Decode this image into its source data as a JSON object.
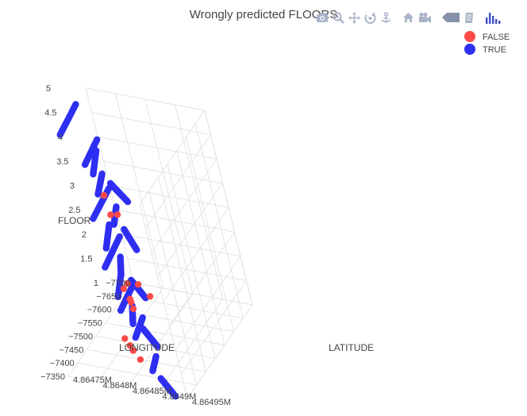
{
  "colors": {
    "false": "#ff4a4a",
    "true": "#2f2ff2",
    "grid": "#e4e4e4",
    "text": "#444444",
    "modebar": "#aab4c8",
    "plotly_logo": "#3f4fc9"
  },
  "modebar": {
    "buttons": [
      {
        "name": "download-plot-icon"
      },
      {
        "name": "zoom-icon"
      },
      {
        "name": "pan-icon"
      },
      {
        "name": "orbit-rotation-icon"
      },
      {
        "name": "turntable-rotation-icon"
      },
      {
        "name": "reset-camera-icon"
      },
      {
        "name": "save-camera-icon"
      },
      {
        "name": "toggle-hover-icon"
      },
      {
        "name": "edit-chart-icon"
      },
      {
        "name": "plotly-logo-icon"
      }
    ]
  },
  "chart_data": {
    "type": "scatter3d",
    "title": "Wrongly predicted FLOORS",
    "axes": {
      "x": {
        "title": "LONGITUDE",
        "ticks": [
          "−7700",
          "−7650",
          "−7600",
          "−7550",
          "−7500",
          "−7450",
          "−7400",
          "−7350"
        ],
        "range": [
          -7700,
          -7350
        ]
      },
      "y": {
        "title": "LATITUDE",
        "ticks": [
          "4.86475M",
          "4.8648M",
          "4.86485M",
          "4.8649M",
          "4.86495M"
        ],
        "range": [
          4864750,
          4864950
        ]
      },
      "z": {
        "title": "FLOOR",
        "ticks": [
          "1",
          "1.5",
          "2",
          "2.5",
          "3",
          "3.5",
          "4",
          "4.5",
          "5"
        ],
        "range": [
          1,
          5
        ]
      }
    },
    "legend": {
      "placement": "top-right",
      "items": [
        "FALSE",
        "TRUE"
      ]
    },
    "series": [
      {
        "name": "TRUE",
        "lines": [
          {
            "floor": 0,
            "lon": [
              -7690,
              -7600
            ],
            "lat": [
              4864752,
              4864760
            ]
          },
          {
            "floor": 0,
            "lon": [
              -7590,
              -7520
            ],
            "lat": [
              4864800,
              4864810
            ]
          },
          {
            "floor": 0,
            "lon": [
              -7470,
              -7420
            ],
            "lat": [
              4864860,
              4864870
            ]
          },
          {
            "floor": 0,
            "lon": [
              -7400,
              -7350
            ],
            "lat": [
              4864890,
              4864930
            ]
          },
          {
            "floor": 1,
            "lon": [
              -7690,
              -7580
            ],
            "lat": [
              4864750,
              4864760
            ]
          },
          {
            "floor": 1,
            "lon": [
              -7570,
              -7490
            ],
            "lat": [
              4864790,
              4864810
            ]
          },
          {
            "floor": 1,
            "lon": [
              -7470,
              -7410
            ],
            "lat": [
              4864840,
              4864860
            ]
          },
          {
            "floor": 1,
            "lon": [
              -7400,
              -7350
            ],
            "lat": [
              4864880,
              4864920
            ]
          },
          {
            "floor": 2,
            "lon": [
              -7690,
              -7580
            ],
            "lat": [
              4864752,
              4864760
            ]
          },
          {
            "floor": 2,
            "lon": [
              -7570,
              -7490
            ],
            "lat": [
              4864790,
              4864810
            ]
          },
          {
            "floor": 2,
            "lon": [
              -7470,
              -7410
            ],
            "lat": [
              4864840,
              4864860
            ]
          },
          {
            "floor": 2,
            "lon": [
              -7400,
              -7350
            ],
            "lat": [
              4864880,
              4864920
            ]
          },
          {
            "floor": 3,
            "lon": [
              -7690,
              -7600
            ],
            "lat": [
              4864752,
              4864760
            ]
          },
          {
            "floor": 3,
            "lon": [
              -7580,
              -7510
            ],
            "lat": [
              4864795,
              4864810
            ]
          },
          {
            "floor": 3,
            "lon": [
              -7480,
              -7420
            ],
            "lat": [
              4864850,
              4864865
            ]
          },
          {
            "floor": 3,
            "lon": [
              -7410,
              -7350
            ],
            "lat": [
              4864885,
              4864925
            ]
          },
          {
            "floor": 4,
            "lon": [
              -7640,
              -7530
            ],
            "lat": [
              4864752,
              4864760
            ]
          },
          {
            "floor": 4,
            "lon": [
              -7500,
              -7420
            ],
            "lat": [
              4864830,
              4864850
            ]
          },
          {
            "floor": 4,
            "lon": [
              -7400,
              -7350
            ],
            "lat": [
              4864885,
              4864930
            ]
          }
        ]
      },
      {
        "name": "FALSE",
        "points": [
          {
            "lon": -7510,
            "lat": 4864820,
            "floor": 3
          },
          {
            "lon": -7455,
            "lat": 4864860,
            "floor": 3
          },
          {
            "lon": -7450,
            "lat": 4864850,
            "floor": 3
          },
          {
            "lon": -7390,
            "lat": 4864895,
            "floor": 2
          },
          {
            "lon": -7358,
            "lat": 4864925,
            "floor": 2
          },
          {
            "lon": -7490,
            "lat": 4864830,
            "floor": 1
          },
          {
            "lon": -7480,
            "lat": 4864835,
            "floor": 1
          },
          {
            "lon": -7460,
            "lat": 4864845,
            "floor": 1
          },
          {
            "lon": -7540,
            "lat": 4864810,
            "floor": 1
          },
          {
            "lon": -7520,
            "lat": 4864810,
            "floor": 1
          },
          {
            "lon": -7475,
            "lat": 4864820,
            "floor": 0
          },
          {
            "lon": -7490,
            "lat": 4864810,
            "floor": 0
          },
          {
            "lon": -7450,
            "lat": 4864840,
            "floor": 0
          },
          {
            "lon": -7510,
            "lat": 4864795,
            "floor": 0
          }
        ]
      }
    ]
  }
}
